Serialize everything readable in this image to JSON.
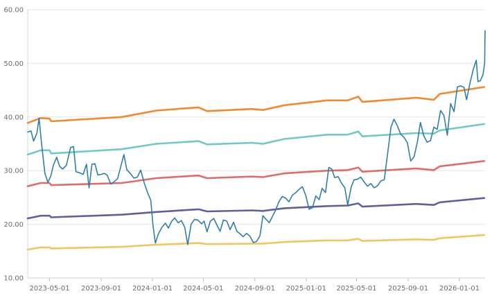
{
  "chart_data": {
    "type": "line",
    "title": "",
    "xlabel": "",
    "ylabel": "",
    "grid": true,
    "legend": "none",
    "ylim": [
      10,
      60
    ],
    "xlim": [
      "2023-03-10",
      "2026-03-03"
    ],
    "y_ticks": [
      {
        "value": 10,
        "label": "10.00"
      },
      {
        "value": 20,
        "label": "20.00"
      },
      {
        "value": 30,
        "label": "30.00"
      },
      {
        "value": 40,
        "label": "40.00"
      },
      {
        "value": 50,
        "label": "50.00"
      },
      {
        "value": 60,
        "label": "60.00"
      }
    ],
    "x_ticks": [
      {
        "value": "2023-05-01",
        "label": "2023-05-01"
      },
      {
        "value": "2023-09-01",
        "label": "2023-09-01"
      },
      {
        "value": "2024-01-01",
        "label": "2024-01-01"
      },
      {
        "value": "2024-05-01",
        "label": "2024-05-01"
      },
      {
        "value": "2024-09-01",
        "label": "2024-09-01"
      },
      {
        "value": "2025-01-01",
        "label": "2025-01-01"
      },
      {
        "value": "2025-05-01",
        "label": "2025-05-01"
      },
      {
        "value": "2025-09-01",
        "label": "2025-09-01"
      },
      {
        "value": "2026-01-01",
        "label": "2026-01-01"
      }
    ],
    "series": [
      {
        "color": "#f08a2c",
        "points": [
          [
            "2023-03-10",
            38.9
          ],
          [
            "2023-04-10",
            39.8
          ],
          [
            "2023-05-01",
            39.7
          ],
          [
            "2023-05-05",
            39.2
          ],
          [
            "2023-10-20",
            40.0
          ],
          [
            "2024-01-10",
            41.2
          ],
          [
            "2024-04-20",
            41.8
          ],
          [
            "2024-05-10",
            41.1
          ],
          [
            "2024-08-25",
            41.5
          ],
          [
            "2024-09-20",
            41.3
          ],
          [
            "2024-11-10",
            42.2
          ],
          [
            "2025-02-20",
            43.1
          ],
          [
            "2025-04-10",
            43.1
          ],
          [
            "2025-05-05",
            43.8
          ],
          [
            "2025-05-15",
            42.8
          ],
          [
            "2025-09-20",
            43.6
          ],
          [
            "2025-11-01",
            43.2
          ],
          [
            "2025-11-15",
            44.3
          ],
          [
            "2026-03-01",
            45.6
          ]
        ]
      },
      {
        "color": "#6fc9c6",
        "points": [
          [
            "2023-03-10",
            33.0
          ],
          [
            "2023-04-10",
            33.8
          ],
          [
            "2023-05-01",
            33.8
          ],
          [
            "2023-05-05",
            33.2
          ],
          [
            "2023-10-20",
            34.0
          ],
          [
            "2024-01-10",
            35.0
          ],
          [
            "2024-04-20",
            35.5
          ],
          [
            "2024-05-10",
            34.9
          ],
          [
            "2024-08-25",
            35.2
          ],
          [
            "2024-09-20",
            35.0
          ],
          [
            "2024-11-10",
            35.9
          ],
          [
            "2025-02-20",
            36.7
          ],
          [
            "2025-04-10",
            36.7
          ],
          [
            "2025-05-05",
            37.3
          ],
          [
            "2025-05-15",
            36.4
          ],
          [
            "2025-09-20",
            37.0
          ],
          [
            "2025-11-01",
            36.9
          ],
          [
            "2025-11-15",
            37.5
          ],
          [
            "2026-03-01",
            38.7
          ]
        ]
      },
      {
        "color": "#e06b6b",
        "points": [
          [
            "2023-03-10",
            27.1
          ],
          [
            "2023-04-10",
            27.7
          ],
          [
            "2023-05-01",
            27.7
          ],
          [
            "2023-05-05",
            27.3
          ],
          [
            "2023-10-20",
            27.7
          ],
          [
            "2024-01-10",
            28.6
          ],
          [
            "2024-04-20",
            29.1
          ],
          [
            "2024-05-10",
            28.6
          ],
          [
            "2024-08-25",
            28.9
          ],
          [
            "2024-09-20",
            28.8
          ],
          [
            "2024-11-10",
            29.5
          ],
          [
            "2025-02-20",
            30.0
          ],
          [
            "2025-04-10",
            30.1
          ],
          [
            "2025-05-05",
            30.6
          ],
          [
            "2025-05-15",
            29.8
          ],
          [
            "2025-09-20",
            30.4
          ],
          [
            "2025-11-01",
            30.1
          ],
          [
            "2025-11-15",
            30.8
          ],
          [
            "2026-03-01",
            31.8
          ]
        ]
      },
      {
        "color": "#5f5fa0",
        "points": [
          [
            "2023-03-10",
            21.1
          ],
          [
            "2023-04-10",
            21.6
          ],
          [
            "2023-05-01",
            21.6
          ],
          [
            "2023-05-05",
            21.3
          ],
          [
            "2023-10-20",
            21.8
          ],
          [
            "2024-01-10",
            22.3
          ],
          [
            "2024-04-20",
            22.8
          ],
          [
            "2024-05-10",
            22.4
          ],
          [
            "2024-08-25",
            22.6
          ],
          [
            "2024-09-20",
            22.5
          ],
          [
            "2024-11-10",
            23.0
          ],
          [
            "2025-02-20",
            23.4
          ],
          [
            "2025-04-10",
            23.5
          ],
          [
            "2025-05-05",
            23.9
          ],
          [
            "2025-05-15",
            23.3
          ],
          [
            "2025-09-20",
            23.8
          ],
          [
            "2025-11-01",
            23.6
          ],
          [
            "2025-11-15",
            24.1
          ],
          [
            "2026-03-01",
            24.9
          ]
        ]
      },
      {
        "color": "#f2c55c",
        "points": [
          [
            "2023-03-10",
            15.3
          ],
          [
            "2023-04-10",
            15.7
          ],
          [
            "2023-05-01",
            15.7
          ],
          [
            "2023-05-05",
            15.5
          ],
          [
            "2023-10-20",
            15.8
          ],
          [
            "2024-01-10",
            16.2
          ],
          [
            "2024-04-20",
            16.5
          ],
          [
            "2024-05-10",
            16.3
          ],
          [
            "2024-08-25",
            16.4
          ],
          [
            "2024-09-20",
            16.4
          ],
          [
            "2024-11-10",
            16.7
          ],
          [
            "2025-02-20",
            17.0
          ],
          [
            "2025-04-10",
            17.0
          ],
          [
            "2025-05-05",
            17.3
          ],
          [
            "2025-05-15",
            16.9
          ],
          [
            "2025-09-20",
            17.2
          ],
          [
            "2025-11-01",
            17.1
          ],
          [
            "2025-11-15",
            17.4
          ],
          [
            "2026-03-01",
            18.0
          ]
        ]
      },
      {
        "color": "#2f7fa3",
        "points": [
          [
            "2023-03-10",
            37.2
          ],
          [
            "2023-03-18",
            37.4
          ],
          [
            "2023-03-24",
            35.5
          ],
          [
            "2023-04-01",
            37.0
          ],
          [
            "2023-04-06",
            39.8
          ],
          [
            "2023-04-12",
            35.0
          ],
          [
            "2023-04-20",
            29.5
          ],
          [
            "2023-04-27",
            27.8
          ],
          [
            "2023-05-04",
            29.0
          ],
          [
            "2023-05-10",
            31.0
          ],
          [
            "2023-05-18",
            32.5
          ],
          [
            "2023-05-25",
            30.8
          ],
          [
            "2023-06-01",
            30.3
          ],
          [
            "2023-06-10",
            31.0
          ],
          [
            "2023-06-20",
            34.3
          ],
          [
            "2023-06-27",
            34.5
          ],
          [
            "2023-07-03",
            29.8
          ],
          [
            "2023-07-12",
            29.6
          ],
          [
            "2023-07-20",
            29.3
          ],
          [
            "2023-07-28",
            31.2
          ],
          [
            "2023-08-03",
            26.8
          ],
          [
            "2023-08-10",
            31.2
          ],
          [
            "2023-08-17",
            31.3
          ],
          [
            "2023-08-24",
            29.2
          ],
          [
            "2023-09-01",
            29.3
          ],
          [
            "2023-09-08",
            29.5
          ],
          [
            "2023-09-15",
            29.2
          ],
          [
            "2023-09-24",
            27.5
          ],
          [
            "2023-10-01",
            27.9
          ],
          [
            "2023-10-10",
            28.5
          ],
          [
            "2023-10-25",
            33.0
          ],
          [
            "2023-11-01",
            30.2
          ],
          [
            "2023-11-10",
            29.4
          ],
          [
            "2023-11-18",
            28.6
          ],
          [
            "2023-11-26",
            28.8
          ],
          [
            "2023-12-04",
            30.1
          ],
          [
            "2023-12-12",
            27.8
          ],
          [
            "2023-12-20",
            26.0
          ],
          [
            "2023-12-28",
            24.5
          ],
          [
            "2024-01-02",
            20.0
          ],
          [
            "2024-01-08",
            16.5
          ],
          [
            "2024-01-15",
            18.2
          ],
          [
            "2024-01-24",
            19.5
          ],
          [
            "2024-02-01",
            20.2
          ],
          [
            "2024-02-08",
            19.3
          ],
          [
            "2024-02-16",
            20.6
          ],
          [
            "2024-02-23",
            21.2
          ],
          [
            "2024-03-02",
            20.3
          ],
          [
            "2024-03-10",
            20.7
          ],
          [
            "2024-03-18",
            19.4
          ],
          [
            "2024-03-25",
            16.2
          ],
          [
            "2024-04-02",
            20.0
          ],
          [
            "2024-04-10",
            20.9
          ],
          [
            "2024-04-18",
            20.8
          ],
          [
            "2024-04-27",
            20.1
          ],
          [
            "2024-05-03",
            20.6
          ],
          [
            "2024-05-10",
            18.6
          ],
          [
            "2024-05-18",
            20.6
          ],
          [
            "2024-05-26",
            21.1
          ],
          [
            "2024-06-03",
            19.8
          ],
          [
            "2024-06-10",
            18.7
          ],
          [
            "2024-06-18",
            20.8
          ],
          [
            "2024-06-26",
            20.6
          ],
          [
            "2024-07-04",
            19.0
          ],
          [
            "2024-07-12",
            20.4
          ],
          [
            "2024-07-20",
            18.7
          ],
          [
            "2024-07-28",
            18.2
          ],
          [
            "2024-08-04",
            17.7
          ],
          [
            "2024-08-12",
            18.3
          ],
          [
            "2024-08-20",
            17.8
          ],
          [
            "2024-08-28",
            16.6
          ],
          [
            "2024-09-05",
            16.8
          ],
          [
            "2024-09-13",
            17.9
          ],
          [
            "2024-09-20",
            21.6
          ],
          [
            "2024-09-28",
            20.9
          ],
          [
            "2024-10-05",
            20.3
          ],
          [
            "2024-10-13",
            21.5
          ],
          [
            "2024-10-20",
            22.6
          ],
          [
            "2024-10-28",
            24.2
          ],
          [
            "2024-11-05",
            25.2
          ],
          [
            "2024-11-13",
            24.9
          ],
          [
            "2024-11-21",
            24.2
          ],
          [
            "2024-11-29",
            25.4
          ],
          [
            "2024-12-07",
            25.9
          ],
          [
            "2024-12-15",
            26.5
          ],
          [
            "2024-12-23",
            27.0
          ],
          [
            "2024-12-31",
            25.4
          ],
          [
            "2025-01-08",
            22.8
          ],
          [
            "2025-01-16",
            23.1
          ],
          [
            "2025-01-24",
            25.3
          ],
          [
            "2025-02-01",
            24.6
          ],
          [
            "2025-02-08",
            26.7
          ],
          [
            "2025-02-16",
            25.9
          ],
          [
            "2025-02-24",
            30.6
          ],
          [
            "2025-03-03",
            30.3
          ],
          [
            "2025-03-10",
            28.7
          ],
          [
            "2025-03-18",
            28.9
          ],
          [
            "2025-03-26",
            27.7
          ],
          [
            "2025-04-03",
            26.8
          ],
          [
            "2025-04-10",
            23.6
          ],
          [
            "2025-04-18",
            26.9
          ],
          [
            "2025-04-25",
            28.3
          ],
          [
            "2025-05-03",
            28.4
          ],
          [
            "2025-05-11",
            28.8
          ],
          [
            "2025-05-19",
            27.9
          ],
          [
            "2025-05-27",
            27.1
          ],
          [
            "2025-06-04",
            27.6
          ],
          [
            "2025-06-12",
            26.8
          ],
          [
            "2025-06-20",
            27.2
          ],
          [
            "2025-06-28",
            28.1
          ],
          [
            "2025-07-06",
            28.3
          ],
          [
            "2025-07-14",
            33.2
          ],
          [
            "2025-07-22",
            38.1
          ],
          [
            "2025-07-29",
            39.6
          ],
          [
            "2025-08-06",
            38.4
          ],
          [
            "2025-08-14",
            36.8
          ],
          [
            "2025-08-22",
            36.2
          ],
          [
            "2025-08-30",
            35.2
          ],
          [
            "2025-09-07",
            31.8
          ],
          [
            "2025-09-15",
            32.6
          ],
          [
            "2025-09-23",
            35.4
          ],
          [
            "2025-09-30",
            39.0
          ],
          [
            "2025-10-08",
            36.5
          ],
          [
            "2025-10-16",
            35.3
          ],
          [
            "2025-10-24",
            35.6
          ],
          [
            "2025-11-01",
            38.1
          ],
          [
            "2025-11-09",
            37.7
          ],
          [
            "2025-11-17",
            41.2
          ],
          [
            "2025-11-25",
            40.3
          ],
          [
            "2025-12-03",
            36.6
          ],
          [
            "2025-12-11",
            42.5
          ],
          [
            "2025-12-19",
            41.0
          ],
          [
            "2025-12-27",
            45.6
          ],
          [
            "2026-01-04",
            45.8
          ],
          [
            "2026-01-12",
            45.5
          ],
          [
            "2026-01-18",
            43.2
          ],
          [
            "2026-01-26",
            46.3
          ],
          [
            "2026-02-03",
            48.9
          ],
          [
            "2026-02-10",
            50.6
          ],
          [
            "2026-02-14",
            46.6
          ],
          [
            "2026-02-20",
            46.8
          ],
          [
            "2026-02-26",
            47.9
          ],
          [
            "2026-03-02",
            50.0
          ],
          [
            "2026-03-03",
            56.1
          ]
        ]
      }
    ]
  }
}
